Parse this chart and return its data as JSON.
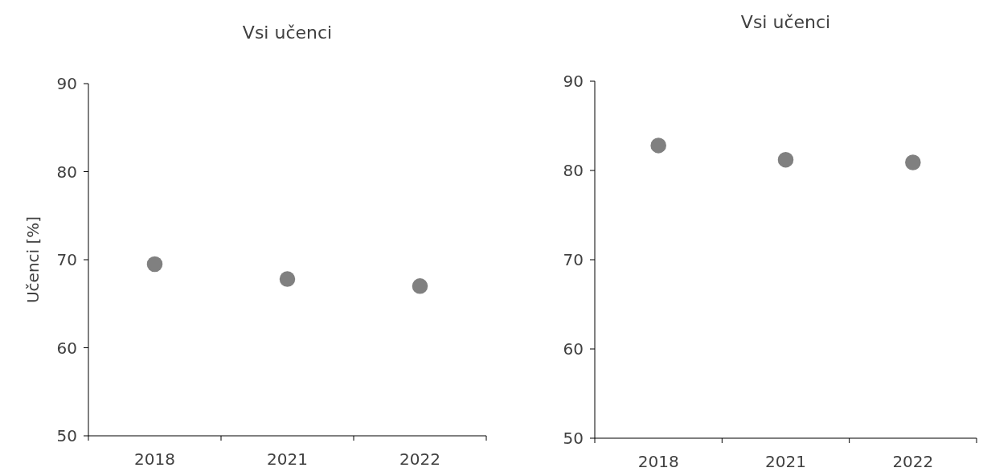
{
  "chart_data": [
    {
      "type": "scatter",
      "title": "Vsi učenci",
      "ylabel": "Učenci [%]",
      "categories": [
        "2018",
        "2021",
        "2022"
      ],
      "series": [
        {
          "color": "#808080",
          "values": [
            69.5,
            67.8,
            67.0
          ]
        }
      ],
      "ylim": [
        50,
        90
      ],
      "yticks": [
        50,
        60,
        70,
        80,
        90
      ],
      "marker": "circle"
    },
    {
      "type": "scatter",
      "title": "Vsi učenci",
      "categories": [
        "2018",
        "2021",
        "2022"
      ],
      "series": [
        {
          "color": "#808080",
          "values": [
            82.8,
            81.2,
            80.9
          ]
        }
      ],
      "ylim": [
        50,
        90
      ],
      "yticks": [
        50,
        60,
        70,
        80,
        90
      ],
      "marker": "circle"
    }
  ]
}
